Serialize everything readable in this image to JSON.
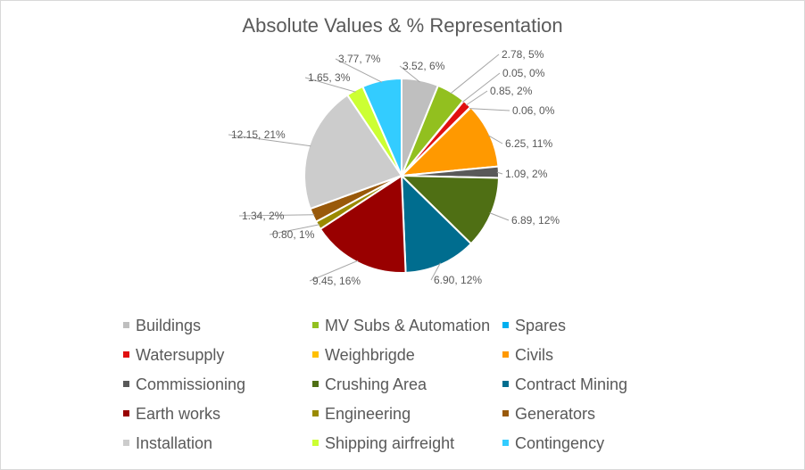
{
  "chart_data": {
    "type": "pie",
    "title": "Absolute Values & % Representation",
    "slices": [
      {
        "name": "Buildings",
        "value": 3.52,
        "label": "3.52, 6%",
        "color": "#bfbfbf"
      },
      {
        "name": "MV Subs & Automation",
        "value": 2.78,
        "label": "2.78, 5%",
        "color": "#92c01f"
      },
      {
        "name": "Spares",
        "value": 0.05,
        "label": "0.05, 0%",
        "color": "#00b0f0"
      },
      {
        "name": "Watersupply",
        "value": 0.85,
        "label": "0.85, 2%",
        "color": "#e01010"
      },
      {
        "name": "Weighbrigde",
        "value": 0.06,
        "label": "0.06, 0%",
        "color": "#ffc000"
      },
      {
        "name": "Civils",
        "value": 6.25,
        "label": "6.25, 11%",
        "color": "#ff9900"
      },
      {
        "name": "Commissioning",
        "value": 1.09,
        "label": "1.09, 2%",
        "color": "#595959"
      },
      {
        "name": "Crushing Area",
        "value": 6.89,
        "label": "6.89, 12%",
        "color": "#4f6f14"
      },
      {
        "name": "Contract Mining",
        "value": 6.9,
        "label": "6.90, 12%",
        "color": "#006d8f"
      },
      {
        "name": "Earth works",
        "value": 9.45,
        "label": "9.45, 16%",
        "color": "#990000"
      },
      {
        "name": "Engineering",
        "value": 0.8,
        "label": "0.80, 1%",
        "color": "#9a8a00"
      },
      {
        "name": "Generators",
        "value": 1.34,
        "label": "1.34, 2%",
        "color": "#99590a"
      },
      {
        "name": "Installation",
        "value": 12.15,
        "label": "12.15, 21%",
        "color": "#cccccc"
      },
      {
        "name": "Shipping airfreight",
        "value": 1.65,
        "label": "1.65, 3%",
        "color": "#ccff33"
      },
      {
        "name": "Contingency",
        "value": 3.77,
        "label": "3.77, 7%",
        "color": "#33ccff"
      }
    ],
    "legend_position": "bottom",
    "start_angle_deg": 0,
    "direction": "clockwise"
  }
}
